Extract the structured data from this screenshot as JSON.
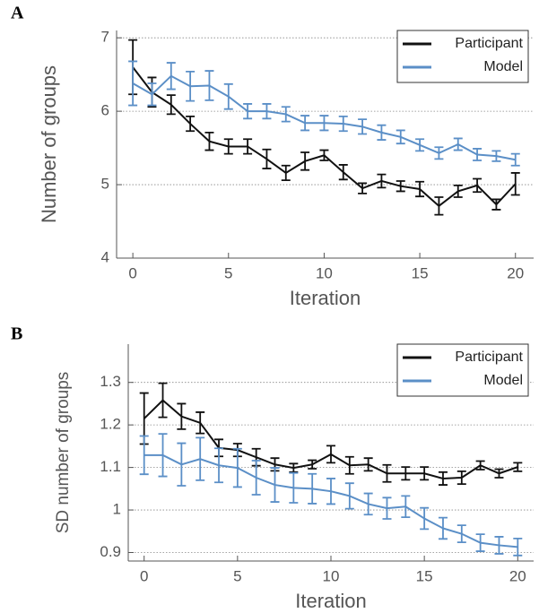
{
  "chart_data": [
    {
      "type": "line",
      "panel_label": "A",
      "xlabel": "Iteration",
      "ylabel": "Number of groups",
      "x": [
        0,
        1,
        2,
        3,
        4,
        5,
        6,
        7,
        8,
        9,
        10,
        11,
        12,
        13,
        14,
        15,
        16,
        17,
        18,
        19,
        20
      ],
      "xlim": [
        -0.85,
        20.95
      ],
      "xticks": [
        0,
        5,
        10,
        15,
        20
      ],
      "ylim": [
        4,
        7.1
      ],
      "yticks": [
        4,
        5,
        6,
        7
      ],
      "grid": true,
      "legend": "upper right",
      "series": [
        {
          "name": "Participant",
          "color": "#111111",
          "values": [
            6.6,
            6.26,
            6.09,
            5.83,
            5.59,
            5.52,
            5.52,
            5.35,
            5.16,
            5.32,
            5.4,
            5.17,
            4.95,
            5.05,
            4.98,
            4.94,
            4.71,
            4.91,
            4.99,
            4.73,
            5.01
          ],
          "errors": [
            0.37,
            0.2,
            0.13,
            0.1,
            0.12,
            0.1,
            0.1,
            0.13,
            0.1,
            0.12,
            0.07,
            0.1,
            0.07,
            0.09,
            0.07,
            0.1,
            0.12,
            0.08,
            0.09,
            0.07,
            0.15
          ]
        },
        {
          "name": "Model",
          "color": "#5b8fc7",
          "values": [
            6.38,
            6.23,
            6.48,
            6.34,
            6.35,
            6.2,
            6.0,
            6.0,
            5.96,
            5.84,
            5.84,
            5.83,
            5.79,
            5.71,
            5.65,
            5.54,
            5.43,
            5.55,
            5.41,
            5.39,
            5.34
          ],
          "errors": [
            0.3,
            0.15,
            0.18,
            0.2,
            0.2,
            0.17,
            0.1,
            0.1,
            0.1,
            0.1,
            0.1,
            0.1,
            0.1,
            0.1,
            0.09,
            0.08,
            0.08,
            0.08,
            0.08,
            0.07,
            0.08
          ]
        }
      ]
    },
    {
      "type": "line",
      "panel_label": "B",
      "xlabel": "Iteration",
      "ylabel": "SD number of groups",
      "x": [
        0,
        1,
        2,
        3,
        4,
        5,
        6,
        7,
        8,
        9,
        10,
        11,
        12,
        13,
        14,
        15,
        16,
        17,
        18,
        19,
        20
      ],
      "xlim": [
        -0.85,
        20.85
      ],
      "xticks": [
        0,
        5,
        10,
        15,
        20
      ],
      "ylim": [
        0.88,
        1.39
      ],
      "yticks": [
        0.9,
        1,
        1.1,
        1.2,
        1.3
      ],
      "grid": true,
      "legend": "upper right",
      "series": [
        {
          "name": "Participant",
          "color": "#111111",
          "values": [
            1.215,
            1.258,
            1.22,
            1.205,
            1.146,
            1.141,
            1.124,
            1.107,
            1.099,
            1.107,
            1.131,
            1.105,
            1.107,
            1.086,
            1.086,
            1.086,
            1.074,
            1.076,
            1.105,
            1.086,
            1.101
          ],
          "errors": [
            0.06,
            0.04,
            0.03,
            0.025,
            0.02,
            0.015,
            0.02,
            0.015,
            0.01,
            0.01,
            0.02,
            0.02,
            0.015,
            0.02,
            0.015,
            0.015,
            0.015,
            0.015,
            0.01,
            0.01,
            0.01
          ]
        },
        {
          "name": "Model",
          "color": "#5b8fc7",
          "values": [
            1.129,
            1.129,
            1.107,
            1.12,
            1.105,
            1.099,
            1.076,
            1.059,
            1.052,
            1.05,
            1.044,
            1.033,
            1.014,
            1.004,
            1.008,
            0.98,
            0.957,
            0.944,
            0.923,
            0.917,
            0.913
          ],
          "errors": [
            0.045,
            0.05,
            0.05,
            0.05,
            0.04,
            0.045,
            0.04,
            0.04,
            0.035,
            0.035,
            0.03,
            0.03,
            0.025,
            0.025,
            0.025,
            0.025,
            0.025,
            0.02,
            0.02,
            0.02,
            0.02
          ]
        }
      ]
    }
  ]
}
